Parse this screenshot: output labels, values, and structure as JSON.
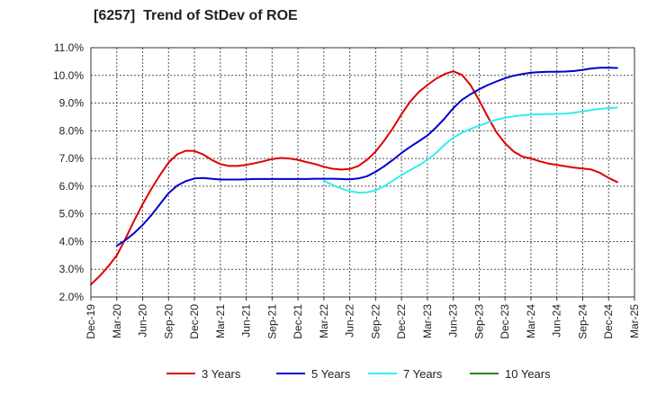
{
  "chart_data": {
    "type": "line",
    "title": "[6257]  Trend of StDev of ROE",
    "xlabel": "",
    "ylabel": "",
    "x_ticks": [
      "Dec-19",
      "Mar-20",
      "Jun-20",
      "Sep-20",
      "Dec-20",
      "Mar-21",
      "Jun-21",
      "Sep-21",
      "Dec-21",
      "Mar-22",
      "Jun-22",
      "Sep-22",
      "Dec-22",
      "Mar-23",
      "Jun-23",
      "Sep-23",
      "Dec-23",
      "Mar-24",
      "Jun-24",
      "Sep-24",
      "Dec-24",
      "Mar-25"
    ],
    "y_ticks": [
      "2.0%",
      "3.0%",
      "4.0%",
      "5.0%",
      "6.0%",
      "7.0%",
      "8.0%",
      "9.0%",
      "10.0%",
      "11.0%"
    ],
    "ylim": [
      2.0,
      11.0
    ],
    "grid": true,
    "legend_position": "bottom",
    "series": [
      {
        "name": "3 Years",
        "color": "#dd0000",
        "points": [
          [
            "Dec-19",
            2.45
          ],
          [
            "Jan-20",
            2.75
          ],
          [
            "Feb-20",
            3.1
          ],
          [
            "Mar-20",
            3.5
          ],
          [
            "Apr-20",
            4.1
          ],
          [
            "May-20",
            4.75
          ],
          [
            "Jun-20",
            5.35
          ],
          [
            "Jul-20",
            5.9
          ],
          [
            "Aug-20",
            6.4
          ],
          [
            "Sep-20",
            6.85
          ],
          [
            "Oct-20",
            7.15
          ],
          [
            "Nov-20",
            7.28
          ],
          [
            "Dec-20",
            7.27
          ],
          [
            "Jan-21",
            7.15
          ],
          [
            "Feb-21",
            6.95
          ],
          [
            "Mar-21",
            6.8
          ],
          [
            "Apr-21",
            6.73
          ],
          [
            "May-21",
            6.73
          ],
          [
            "Jun-21",
            6.77
          ],
          [
            "Jul-21",
            6.83
          ],
          [
            "Aug-21",
            6.9
          ],
          [
            "Sep-21",
            6.98
          ],
          [
            "Oct-21",
            7.02
          ],
          [
            "Nov-21",
            7.0
          ],
          [
            "Dec-21",
            6.95
          ],
          [
            "Jan-22",
            6.87
          ],
          [
            "Feb-22",
            6.8
          ],
          [
            "Mar-22",
            6.7
          ],
          [
            "Apr-22",
            6.63
          ],
          [
            "May-22",
            6.6
          ],
          [
            "Jun-22",
            6.62
          ],
          [
            "Jul-22",
            6.73
          ],
          [
            "Aug-22",
            6.95
          ],
          [
            "Sep-22",
            7.25
          ],
          [
            "Oct-22",
            7.65
          ],
          [
            "Nov-22",
            8.1
          ],
          [
            "Dec-22",
            8.6
          ],
          [
            "Jan-23",
            9.05
          ],
          [
            "Feb-23",
            9.4
          ],
          [
            "Mar-23",
            9.65
          ],
          [
            "Apr-23",
            9.88
          ],
          [
            "May-23",
            10.05
          ],
          [
            "Jun-23",
            10.15
          ],
          [
            "Jul-23",
            10.02
          ],
          [
            "Aug-23",
            9.65
          ],
          [
            "Sep-23",
            9.1
          ],
          [
            "Oct-23",
            8.5
          ],
          [
            "Nov-23",
            7.95
          ],
          [
            "Dec-23",
            7.55
          ],
          [
            "Jan-24",
            7.25
          ],
          [
            "Feb-24",
            7.07
          ],
          [
            "Mar-24",
            7.0
          ],
          [
            "Apr-24",
            6.9
          ],
          [
            "May-24",
            6.82
          ],
          [
            "Jun-24",
            6.77
          ],
          [
            "Jul-24",
            6.72
          ],
          [
            "Aug-24",
            6.67
          ],
          [
            "Sep-24",
            6.64
          ],
          [
            "Oct-24",
            6.6
          ],
          [
            "Nov-24",
            6.48
          ],
          [
            "Dec-24",
            6.3
          ],
          [
            "Jan-25",
            6.15
          ]
        ]
      },
      {
        "name": "5 Years",
        "color": "#0000cc",
        "points": [
          [
            "Mar-20",
            3.85
          ],
          [
            "Apr-20",
            4.05
          ],
          [
            "May-20",
            4.3
          ],
          [
            "Jun-20",
            4.6
          ],
          [
            "Jul-20",
            4.95
          ],
          [
            "Aug-20",
            5.35
          ],
          [
            "Sep-20",
            5.75
          ],
          [
            "Oct-20",
            6.02
          ],
          [
            "Nov-20",
            6.18
          ],
          [
            "Dec-20",
            6.28
          ],
          [
            "Jan-21",
            6.3
          ],
          [
            "Feb-21",
            6.27
          ],
          [
            "Mar-21",
            6.24
          ],
          [
            "Apr-21",
            6.24
          ],
          [
            "May-21",
            6.24
          ],
          [
            "Jun-21",
            6.25
          ],
          [
            "Jul-21",
            6.26
          ],
          [
            "Aug-21",
            6.26
          ],
          [
            "Sep-21",
            6.26
          ],
          [
            "Oct-21",
            6.26
          ],
          [
            "Nov-21",
            6.26
          ],
          [
            "Dec-21",
            6.26
          ],
          [
            "Jan-22",
            6.26
          ],
          [
            "Feb-22",
            6.27
          ],
          [
            "Mar-22",
            6.27
          ],
          [
            "Apr-22",
            6.27
          ],
          [
            "May-22",
            6.26
          ],
          [
            "Jun-22",
            6.25
          ],
          [
            "Jul-22",
            6.28
          ],
          [
            "Aug-22",
            6.36
          ],
          [
            "Sep-22",
            6.52
          ],
          [
            "Oct-22",
            6.72
          ],
          [
            "Nov-22",
            6.95
          ],
          [
            "Dec-22",
            7.2
          ],
          [
            "Jan-23",
            7.42
          ],
          [
            "Feb-23",
            7.62
          ],
          [
            "Mar-23",
            7.83
          ],
          [
            "Apr-23",
            8.12
          ],
          [
            "May-23",
            8.45
          ],
          [
            "Jun-23",
            8.82
          ],
          [
            "Jul-23",
            9.12
          ],
          [
            "Aug-23",
            9.32
          ],
          [
            "Sep-23",
            9.5
          ],
          [
            "Oct-23",
            9.65
          ],
          [
            "Nov-23",
            9.78
          ],
          [
            "Dec-23",
            9.9
          ],
          [
            "Jan-24",
            9.99
          ],
          [
            "Feb-24",
            10.05
          ],
          [
            "Mar-24",
            10.1
          ],
          [
            "Apr-24",
            10.12
          ],
          [
            "May-24",
            10.13
          ],
          [
            "Jun-24",
            10.13
          ],
          [
            "Jul-24",
            10.14
          ],
          [
            "Aug-24",
            10.16
          ],
          [
            "Sep-24",
            10.2
          ],
          [
            "Oct-24",
            10.25
          ],
          [
            "Nov-24",
            10.28
          ],
          [
            "Dec-24",
            10.28
          ],
          [
            "Jan-25",
            10.27
          ]
        ]
      },
      {
        "name": "7 Years",
        "color": "#33eeee",
        "points": [
          [
            "Mar-22",
            6.2
          ],
          [
            "Apr-22",
            6.05
          ],
          [
            "May-22",
            5.92
          ],
          [
            "Jun-22",
            5.82
          ],
          [
            "Jul-22",
            5.77
          ],
          [
            "Aug-22",
            5.78
          ],
          [
            "Sep-22",
            5.85
          ],
          [
            "Oct-22",
            6.0
          ],
          [
            "Nov-22",
            6.2
          ],
          [
            "Dec-22",
            6.4
          ],
          [
            "Jan-23",
            6.58
          ],
          [
            "Feb-23",
            6.75
          ],
          [
            "Mar-23",
            6.95
          ],
          [
            "Apr-23",
            7.2
          ],
          [
            "May-23",
            7.5
          ],
          [
            "Jun-23",
            7.75
          ],
          [
            "Jul-23",
            7.93
          ],
          [
            "Aug-23",
            8.07
          ],
          [
            "Sep-23",
            8.18
          ],
          [
            "Oct-23",
            8.3
          ],
          [
            "Nov-23",
            8.4
          ],
          [
            "Dec-23",
            8.47
          ],
          [
            "Jan-24",
            8.52
          ],
          [
            "Feb-24",
            8.56
          ],
          [
            "Mar-24",
            8.59
          ],
          [
            "Apr-24",
            8.6
          ],
          [
            "May-24",
            8.6
          ],
          [
            "Jun-24",
            8.61
          ],
          [
            "Jul-24",
            8.62
          ],
          [
            "Aug-24",
            8.65
          ],
          [
            "Sep-24",
            8.7
          ],
          [
            "Oct-24",
            8.75
          ],
          [
            "Nov-24",
            8.79
          ],
          [
            "Dec-24",
            8.82
          ],
          [
            "Jan-25",
            8.84
          ]
        ]
      },
      {
        "name": "10 Years",
        "color": "#228822",
        "points": []
      }
    ]
  }
}
